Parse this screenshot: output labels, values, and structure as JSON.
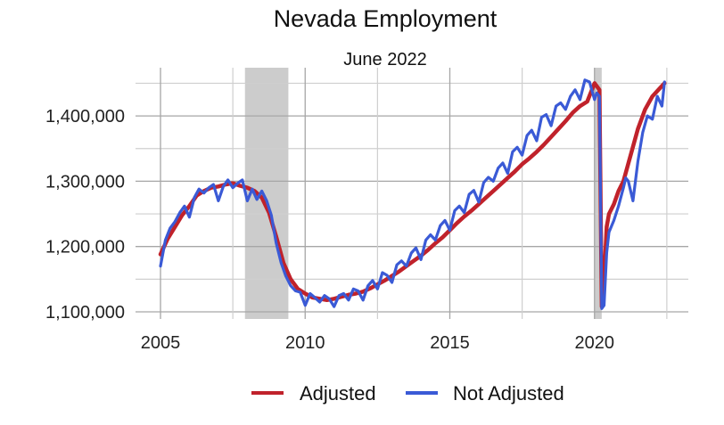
{
  "chart_data": {
    "type": "line",
    "title": "Nevada Employment",
    "subtitle": "June 2022",
    "xlabel": "",
    "ylabel": "",
    "xlim": [
      2005.0,
      2022.5
    ],
    "ylim": [
      1095000,
      1465000
    ],
    "x_ticks": [
      2005,
      2010,
      2015,
      2020
    ],
    "x_tick_labels": [
      "2005",
      "2010",
      "2015",
      "2020"
    ],
    "y_ticks": [
      1100000,
      1200000,
      1300000,
      1400000
    ],
    "y_tick_labels": [
      "1,100,000",
      "1,200,000",
      "1,300,000",
      "1,400,000"
    ],
    "grid": true,
    "legend_position": "bottom",
    "recession_shading": [
      {
        "start": 2007.92,
        "end": 2009.42
      },
      {
        "start": 2020.0,
        "end": 2020.25
      }
    ],
    "recession_color": "#cccccc",
    "series": [
      {
        "name": "Adjusted",
        "color": "#c0222b",
        "x": [
          2005.0,
          2005.25,
          2005.5,
          2005.75,
          2006.0,
          2006.25,
          2006.5,
          2006.75,
          2007.0,
          2007.25,
          2007.5,
          2007.75,
          2008.0,
          2008.25,
          2008.5,
          2008.75,
          2009.0,
          2009.25,
          2009.5,
          2009.75,
          2010.0,
          2010.25,
          2010.5,
          2010.75,
          2011.0,
          2011.25,
          2011.5,
          2011.75,
          2012.0,
          2012.25,
          2012.5,
          2012.75,
          2013.0,
          2013.25,
          2013.5,
          2013.75,
          2014.0,
          2014.25,
          2014.5,
          2014.75,
          2015.0,
          2015.25,
          2015.5,
          2015.75,
          2016.0,
          2016.25,
          2016.5,
          2016.75,
          2017.0,
          2017.25,
          2017.5,
          2017.75,
          2018.0,
          2018.25,
          2018.5,
          2018.75,
          2019.0,
          2019.25,
          2019.5,
          2019.75,
          2020.0,
          2020.17,
          2020.25,
          2020.33,
          2020.42,
          2020.5,
          2020.67,
          2020.83,
          2021.0,
          2021.25,
          2021.5,
          2021.75,
          2022.0,
          2022.25,
          2022.42
        ],
        "values": [
          1188000,
          1212000,
          1230000,
          1248000,
          1262000,
          1278000,
          1285000,
          1290000,
          1292000,
          1295000,
          1297000,
          1293000,
          1290000,
          1285000,
          1275000,
          1252000,
          1215000,
          1175000,
          1150000,
          1135000,
          1128000,
          1122000,
          1120000,
          1118000,
          1120000,
          1123000,
          1126000,
          1128000,
          1131000,
          1136000,
          1142000,
          1148000,
          1155000,
          1162000,
          1170000,
          1178000,
          1186000,
          1195000,
          1205000,
          1214000,
          1225000,
          1236000,
          1246000,
          1255000,
          1265000,
          1275000,
          1285000,
          1295000,
          1305000,
          1315000,
          1326000,
          1335000,
          1345000,
          1356000,
          1368000,
          1380000,
          1392000,
          1405000,
          1415000,
          1422000,
          1450000,
          1440000,
          1108000,
          1150000,
          1230000,
          1250000,
          1265000,
          1285000,
          1300000,
          1340000,
          1380000,
          1410000,
          1430000,
          1442000,
          1450000
        ]
      },
      {
        "name": "Not Adjusted",
        "color": "#3a5ad6",
        "x": [
          2005.0,
          2005.17,
          2005.33,
          2005.5,
          2005.67,
          2005.83,
          2006.0,
          2006.17,
          2006.33,
          2006.5,
          2006.67,
          2006.83,
          2007.0,
          2007.17,
          2007.33,
          2007.5,
          2007.67,
          2007.83,
          2008.0,
          2008.17,
          2008.33,
          2008.5,
          2008.67,
          2008.83,
          2009.0,
          2009.17,
          2009.33,
          2009.5,
          2009.67,
          2009.83,
          2010.0,
          2010.17,
          2010.33,
          2010.5,
          2010.67,
          2010.83,
          2011.0,
          2011.17,
          2011.33,
          2011.5,
          2011.67,
          2011.83,
          2012.0,
          2012.17,
          2012.33,
          2012.5,
          2012.67,
          2012.83,
          2013.0,
          2013.17,
          2013.33,
          2013.5,
          2013.67,
          2013.83,
          2014.0,
          2014.17,
          2014.33,
          2014.5,
          2014.67,
          2014.83,
          2015.0,
          2015.17,
          2015.33,
          2015.5,
          2015.67,
          2015.83,
          2016.0,
          2016.17,
          2016.33,
          2016.5,
          2016.67,
          2016.83,
          2017.0,
          2017.17,
          2017.33,
          2017.5,
          2017.67,
          2017.83,
          2018.0,
          2018.17,
          2018.33,
          2018.5,
          2018.67,
          2018.83,
          2019.0,
          2019.17,
          2019.33,
          2019.5,
          2019.67,
          2019.83,
          2020.0,
          2020.08,
          2020.17,
          2020.25,
          2020.33,
          2020.42,
          2020.5,
          2020.67,
          2020.83,
          2021.0,
          2021.08,
          2021.17,
          2021.33,
          2021.5,
          2021.67,
          2021.83,
          2022.0,
          2022.17,
          2022.33,
          2022.42
        ],
        "values": [
          1170000,
          1210000,
          1228000,
          1238000,
          1252000,
          1262000,
          1245000,
          1275000,
          1288000,
          1282000,
          1290000,
          1295000,
          1270000,
          1292000,
          1302000,
          1290000,
          1297000,
          1302000,
          1270000,
          1288000,
          1272000,
          1285000,
          1270000,
          1248000,
          1205000,
          1175000,
          1155000,
          1140000,
          1132000,
          1130000,
          1110000,
          1128000,
          1122000,
          1115000,
          1125000,
          1120000,
          1108000,
          1125000,
          1128000,
          1118000,
          1135000,
          1132000,
          1118000,
          1140000,
          1148000,
          1135000,
          1160000,
          1156000,
          1145000,
          1172000,
          1178000,
          1170000,
          1190000,
          1198000,
          1180000,
          1210000,
          1218000,
          1210000,
          1232000,
          1240000,
          1225000,
          1255000,
          1262000,
          1252000,
          1280000,
          1286000,
          1268000,
          1298000,
          1306000,
          1300000,
          1320000,
          1328000,
          1312000,
          1345000,
          1352000,
          1340000,
          1370000,
          1378000,
          1362000,
          1398000,
          1402000,
          1385000,
          1415000,
          1420000,
          1410000,
          1430000,
          1440000,
          1425000,
          1455000,
          1452000,
          1425000,
          1435000,
          1430000,
          1105000,
          1110000,
          1190000,
          1222000,
          1240000,
          1262000,
          1290000,
          1305000,
          1300000,
          1270000,
          1330000,
          1375000,
          1400000,
          1395000,
          1430000,
          1415000,
          1452000
        ]
      }
    ]
  },
  "legend": {
    "items": [
      {
        "label": "Adjusted",
        "color": "#c0222b"
      },
      {
        "label": "Not Adjusted",
        "color": "#3a5ad6"
      }
    ]
  }
}
